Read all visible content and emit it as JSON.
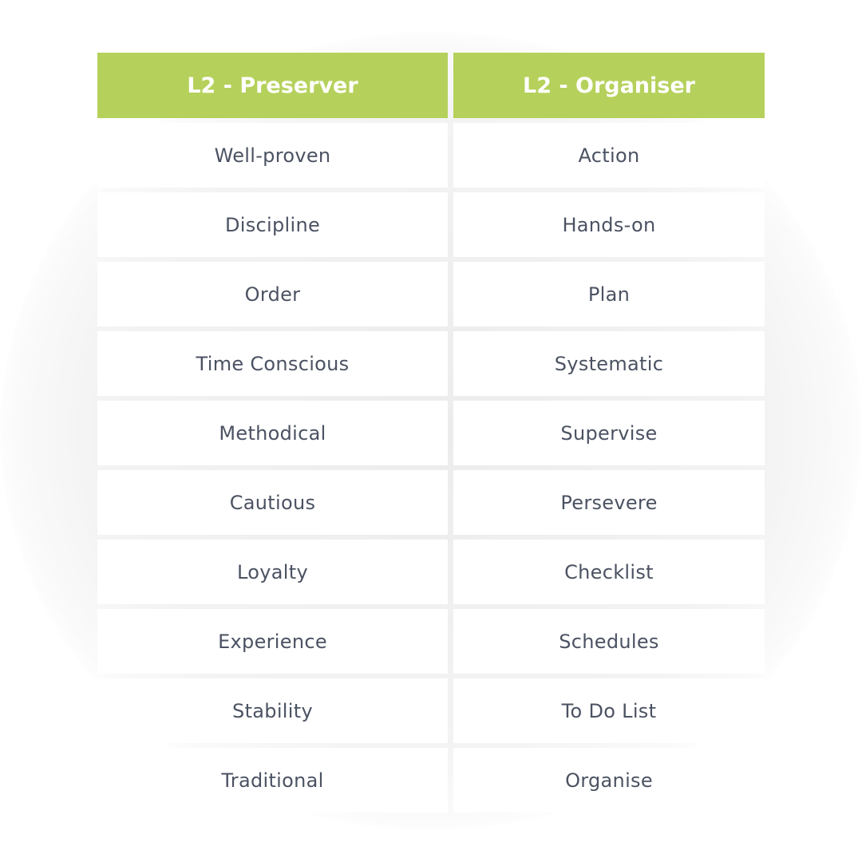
{
  "headers": [
    "L2 - Preserver",
    "L2 - Organiser"
  ],
  "colors": {
    "header_bg": "#b5d15b",
    "header_text": "#ffffff",
    "cell_text": "#4b5262"
  },
  "rows": [
    [
      "Well-proven",
      "Action"
    ],
    [
      "Discipline",
      "Hands-on"
    ],
    [
      "Order",
      "Plan"
    ],
    [
      "Time Conscious",
      "Systematic"
    ],
    [
      "Methodical",
      "Supervise"
    ],
    [
      "Cautious",
      "Persevere"
    ],
    [
      "Loyalty",
      "Checklist"
    ],
    [
      "Experience",
      "Schedules"
    ],
    [
      "Stability",
      "To Do List"
    ],
    [
      "Traditional",
      "Organise"
    ]
  ]
}
